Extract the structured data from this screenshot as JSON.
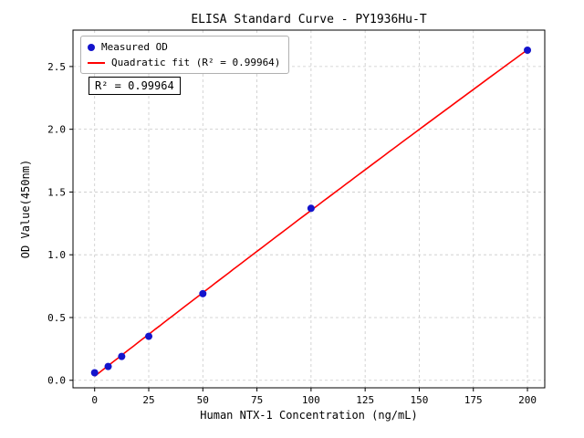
{
  "chart_data": {
    "type": "scatter",
    "title": "ELISA Standard Curve - PY1936Hu-T",
    "xlabel": "Human NTX-1 Concentration (ng/mL)",
    "ylabel": "OD Value(450nm)",
    "series": [
      {
        "name": "Measured OD",
        "type": "scatter",
        "color": "#1414cc",
        "x": [
          0,
          6.25,
          12.5,
          25,
          50,
          100,
          200
        ],
        "y": [
          0.06,
          0.11,
          0.19,
          0.35,
          0.69,
          1.37,
          2.63
        ]
      },
      {
        "name": "Quadratic fit (R² = 0.99964)",
        "type": "line",
        "color": "#ff0000",
        "fit": "quadratic"
      }
    ],
    "legend": [
      "Measured OD",
      "Quadratic fit (R² = 0.99964)"
    ],
    "legend_position": "upper-left",
    "annotation": "R² = 0.99964",
    "r_squared": 0.99964,
    "x_ticks": [
      0,
      25,
      50,
      75,
      100,
      125,
      150,
      175,
      200
    ],
    "y_ticks": [
      0.0,
      0.5,
      1.0,
      1.5,
      2.0,
      2.5
    ],
    "xlim": [
      -10,
      208
    ],
    "ylim": [
      -0.06,
      2.79
    ],
    "grid": true,
    "grid_style": "dashed",
    "grid_color": "#c9c9c9"
  }
}
